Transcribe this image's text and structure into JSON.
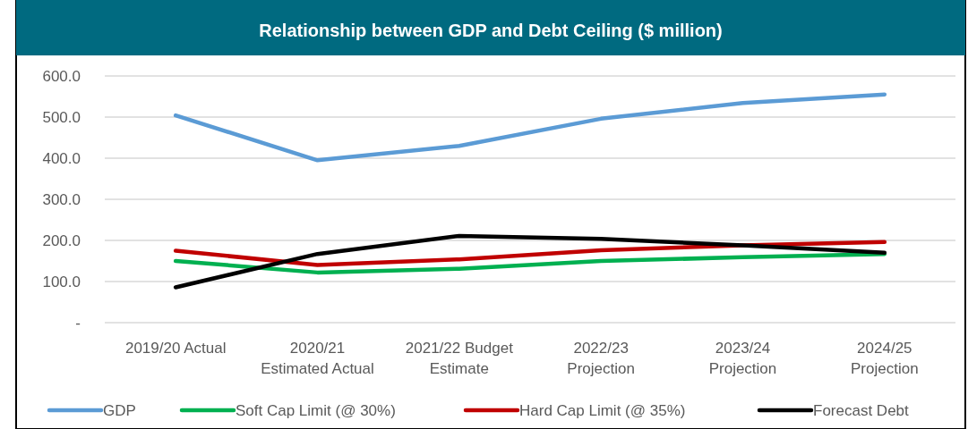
{
  "chart_data": {
    "type": "line",
    "title": "Relationship between GDP and Debt Ceiling ($ million)",
    "categories": [
      "2019/20 Actual",
      "2020/21 Estimated Actual",
      "2021/22 Budget Estimate",
      "2022/23 Projection",
      "2023/24 Projection",
      "2024/25 Projection"
    ],
    "series": [
      {
        "name": "GDP",
        "color": "#5b9bd5",
        "values": [
          504,
          395,
          430,
          496,
          534,
          555
        ]
      },
      {
        "name": "Soft Cap Limit (@ 30%)",
        "color": "#00b050",
        "values": [
          150,
          122,
          131,
          150,
          159,
          167
        ]
      },
      {
        "name": "Hard Cap Limit (@ 35%)",
        "color": "#c00000",
        "values": [
          175,
          140,
          154,
          176,
          188,
          196
        ]
      },
      {
        "name": "Forecast Debt",
        "color": "#000000",
        "values": [
          86,
          167,
          211,
          204,
          188,
          170
        ]
      }
    ],
    "ylim": [
      0,
      600
    ],
    "yticks": [
      {
        "value": 0,
        "label": "-"
      },
      {
        "value": 100,
        "label": "100.0"
      },
      {
        "value": 200,
        "label": "200.0"
      },
      {
        "value": 300,
        "label": "300.0"
      },
      {
        "value": 400,
        "label": "400.0"
      },
      {
        "value": 500,
        "label": "500.0"
      },
      {
        "value": 600,
        "label": "600.0"
      }
    ],
    "grid": "y",
    "legend": "bottom",
    "marker": "none",
    "line_style": "solid"
  }
}
